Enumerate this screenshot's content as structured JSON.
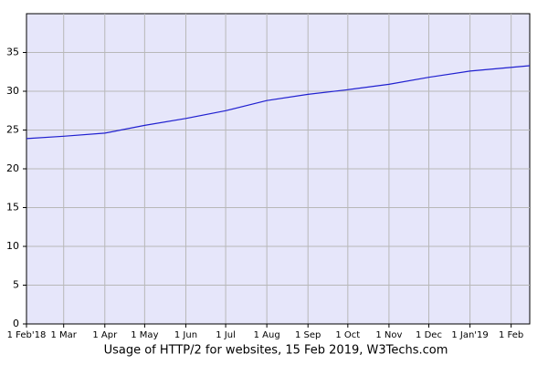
{
  "chart_data": {
    "type": "line",
    "title": "Usage of HTTP/2 for websites, 15 Feb 2019, W3Techs.com",
    "x": [
      "2018-02-01",
      "2018-03-01",
      "2018-04-01",
      "2018-05-01",
      "2018-06-01",
      "2018-07-01",
      "2018-08-01",
      "2018-09-01",
      "2018-10-01",
      "2018-11-01",
      "2018-12-01",
      "2019-01-01",
      "2019-02-15"
    ],
    "series": [
      {
        "name": "HTTP/2",
        "color": "#2020d0",
        "values": [
          23.9,
          24.2,
          24.6,
          25.6,
          26.5,
          27.5,
          28.8,
          29.6,
          30.2,
          30.9,
          31.8,
          32.6,
          33.3
        ]
      }
    ],
    "xlim": [
      "2018-02-01",
      "2019-02-15"
    ],
    "xticks": [
      {
        "value": "2018-02-01",
        "label": "1 Feb'18"
      },
      {
        "value": "2018-03-01",
        "label": "1 Mar"
      },
      {
        "value": "2018-04-01",
        "label": "1 Apr"
      },
      {
        "value": "2018-05-01",
        "label": "1 May"
      },
      {
        "value": "2018-06-01",
        "label": "1 Jun"
      },
      {
        "value": "2018-07-01",
        "label": "1 Jul"
      },
      {
        "value": "2018-08-01",
        "label": "1 Aug"
      },
      {
        "value": "2018-09-01",
        "label": "1 Sep"
      },
      {
        "value": "2018-10-01",
        "label": "1 Oct"
      },
      {
        "value": "2018-11-01",
        "label": "1 Nov"
      },
      {
        "value": "2018-12-01",
        "label": "1 Dec"
      },
      {
        "value": "2019-01-01",
        "label": "1 Jan'19"
      },
      {
        "value": "2019-02-01",
        "label": "1 Feb"
      }
    ],
    "ylim": [
      0,
      40
    ],
    "yticks": [
      0,
      5,
      10,
      15,
      20,
      25,
      30,
      35
    ],
    "grid": true,
    "background": "#e6e6fa"
  }
}
